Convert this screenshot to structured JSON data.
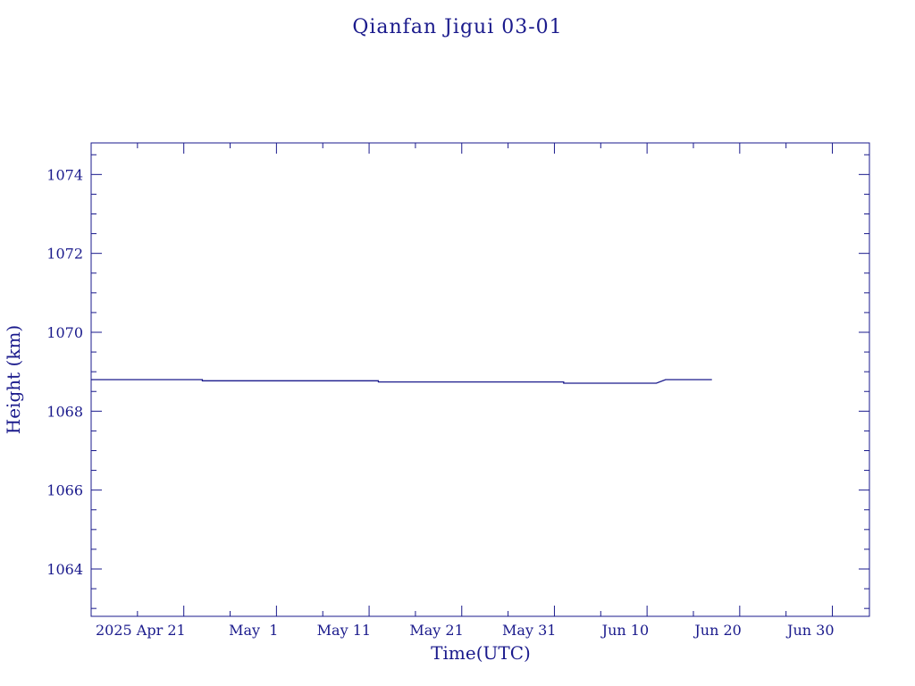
{
  "colors": {
    "ink": "#1a1a8c",
    "background": "#ffffff"
  },
  "chart_data": {
    "type": "line",
    "title": "Qianfan Jigui 03-01",
    "xlabel": "Time(UTC)",
    "ylabel": "Height (km)",
    "xlim": [
      "2025-04-11",
      "2025-07-04"
    ],
    "ylim": [
      1062.8,
      1074.8
    ],
    "x_major_ticks": [
      {
        "date": "2025-04-21",
        "label": "2025 Apr 21"
      },
      {
        "date": "2025-05-01",
        "label": "May  1"
      },
      {
        "date": "2025-05-11",
        "label": "May 11"
      },
      {
        "date": "2025-05-21",
        "label": "May 21"
      },
      {
        "date": "2025-05-31",
        "label": "May 31"
      },
      {
        "date": "2025-06-10",
        "label": "Jun 10"
      },
      {
        "date": "2025-06-20",
        "label": "Jun 20"
      },
      {
        "date": "2025-06-30",
        "label": "Jun 30"
      }
    ],
    "x_minor_tick_days": 5,
    "y_major_ticks": [
      1064,
      1066,
      1068,
      1070,
      1072,
      1074
    ],
    "y_minor_step": 0.5,
    "grid": false,
    "legend": "none",
    "series": [
      {
        "x": [
          "2025-04-11",
          "2025-04-18",
          "2025-04-23",
          "2025-04-23",
          "2025-05-01",
          "2025-05-11",
          "2025-05-12",
          "2025-05-12",
          "2025-05-21",
          "2025-05-31",
          "2025-06-01",
          "2025-06-01",
          "2025-06-10",
          "2025-06-11",
          "2025-06-12",
          "2025-06-17"
        ],
        "y": [
          1068.8,
          1068.8,
          1068.8,
          1068.77,
          1068.77,
          1068.77,
          1068.77,
          1068.74,
          1068.74,
          1068.74,
          1068.74,
          1068.71,
          1068.71,
          1068.71,
          1068.8,
          1068.8
        ]
      }
    ]
  }
}
